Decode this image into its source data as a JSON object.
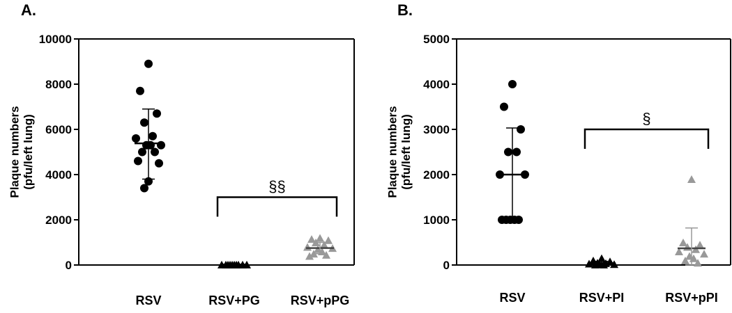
{
  "chart_data": [
    {
      "type": "scatter",
      "panel_label": "A.",
      "ylabel_line1": "Plaque numbers",
      "ylabel_line2": "(pfu/left lung)",
      "xlabel": "",
      "ylim": [
        0,
        10000
      ],
      "yticks": [
        "0",
        "2000",
        "4000",
        "6000",
        "8000",
        "10000"
      ],
      "categories": [
        "RSV",
        "RSV+PG",
        "RSV+pPG"
      ],
      "series": [
        {
          "category": "RSV",
          "marker": "circle",
          "color": "#000000",
          "values": [
            8900,
            7700,
            6700,
            6300,
            5700,
            5600,
            5300,
            5300,
            5300,
            5000,
            5000,
            4600,
            4500,
            3700,
            3400
          ],
          "mean": 5380,
          "sd": [
            3800,
            6900
          ]
        },
        {
          "category": "RSV+PG",
          "marker": "triangle",
          "color": "#000000",
          "values": [
            20,
            20,
            20,
            20,
            20,
            20,
            20,
            20,
            20,
            20
          ],
          "mean": 20,
          "sd": [
            0,
            40
          ]
        },
        {
          "category": "RSV+pPG",
          "marker": "triangle",
          "color": "#999999",
          "values": [
            1200,
            1150,
            1100,
            1000,
            900,
            800,
            750,
            700,
            600,
            500,
            450,
            400
          ],
          "mean": 750,
          "sd": [
            500,
            1000
          ]
        }
      ],
      "significance": {
        "label": "§§",
        "from": "RSV+PG",
        "to": "RSV+pPG",
        "y": 3000
      }
    },
    {
      "type": "scatter",
      "panel_label": "B.",
      "ylabel_line1": "Plaque numbers",
      "ylabel_line2": "(pfu/left lung)",
      "xlabel": "",
      "ylim": [
        0,
        5000
      ],
      "yticks": [
        "0",
        "1000",
        "2000",
        "3000",
        "4000",
        "5000"
      ],
      "categories": [
        "RSV",
        "RSV+PI",
        "RSV+pPI"
      ],
      "series": [
        {
          "category": "RSV",
          "marker": "circle",
          "color": "#000000",
          "values": [
            4000,
            3500,
            3000,
            2500,
            2500,
            2000,
            2000,
            1000,
            1000,
            1000,
            1000,
            1000
          ],
          "mean": 2000,
          "sd": [
            1000,
            3030
          ]
        },
        {
          "category": "RSV+PI",
          "marker": "triangle",
          "color": "#000000",
          "values": [
            150,
            100,
            80,
            50,
            40,
            30,
            20,
            20,
            10,
            10
          ],
          "mean": 40,
          "sd": [
            0,
            80
          ]
        },
        {
          "category": "RSV+pPI",
          "marker": "triangle",
          "color": "#999999",
          "values": [
            1900,
            500,
            450,
            400,
            350,
            300,
            250,
            200,
            150,
            100,
            50
          ],
          "mean": 370,
          "sd": [
            0,
            820
          ]
        }
      ],
      "significance": {
        "label": "§",
        "from": "RSV+PI",
        "to": "RSV+pPI",
        "y": 3000
      }
    }
  ]
}
